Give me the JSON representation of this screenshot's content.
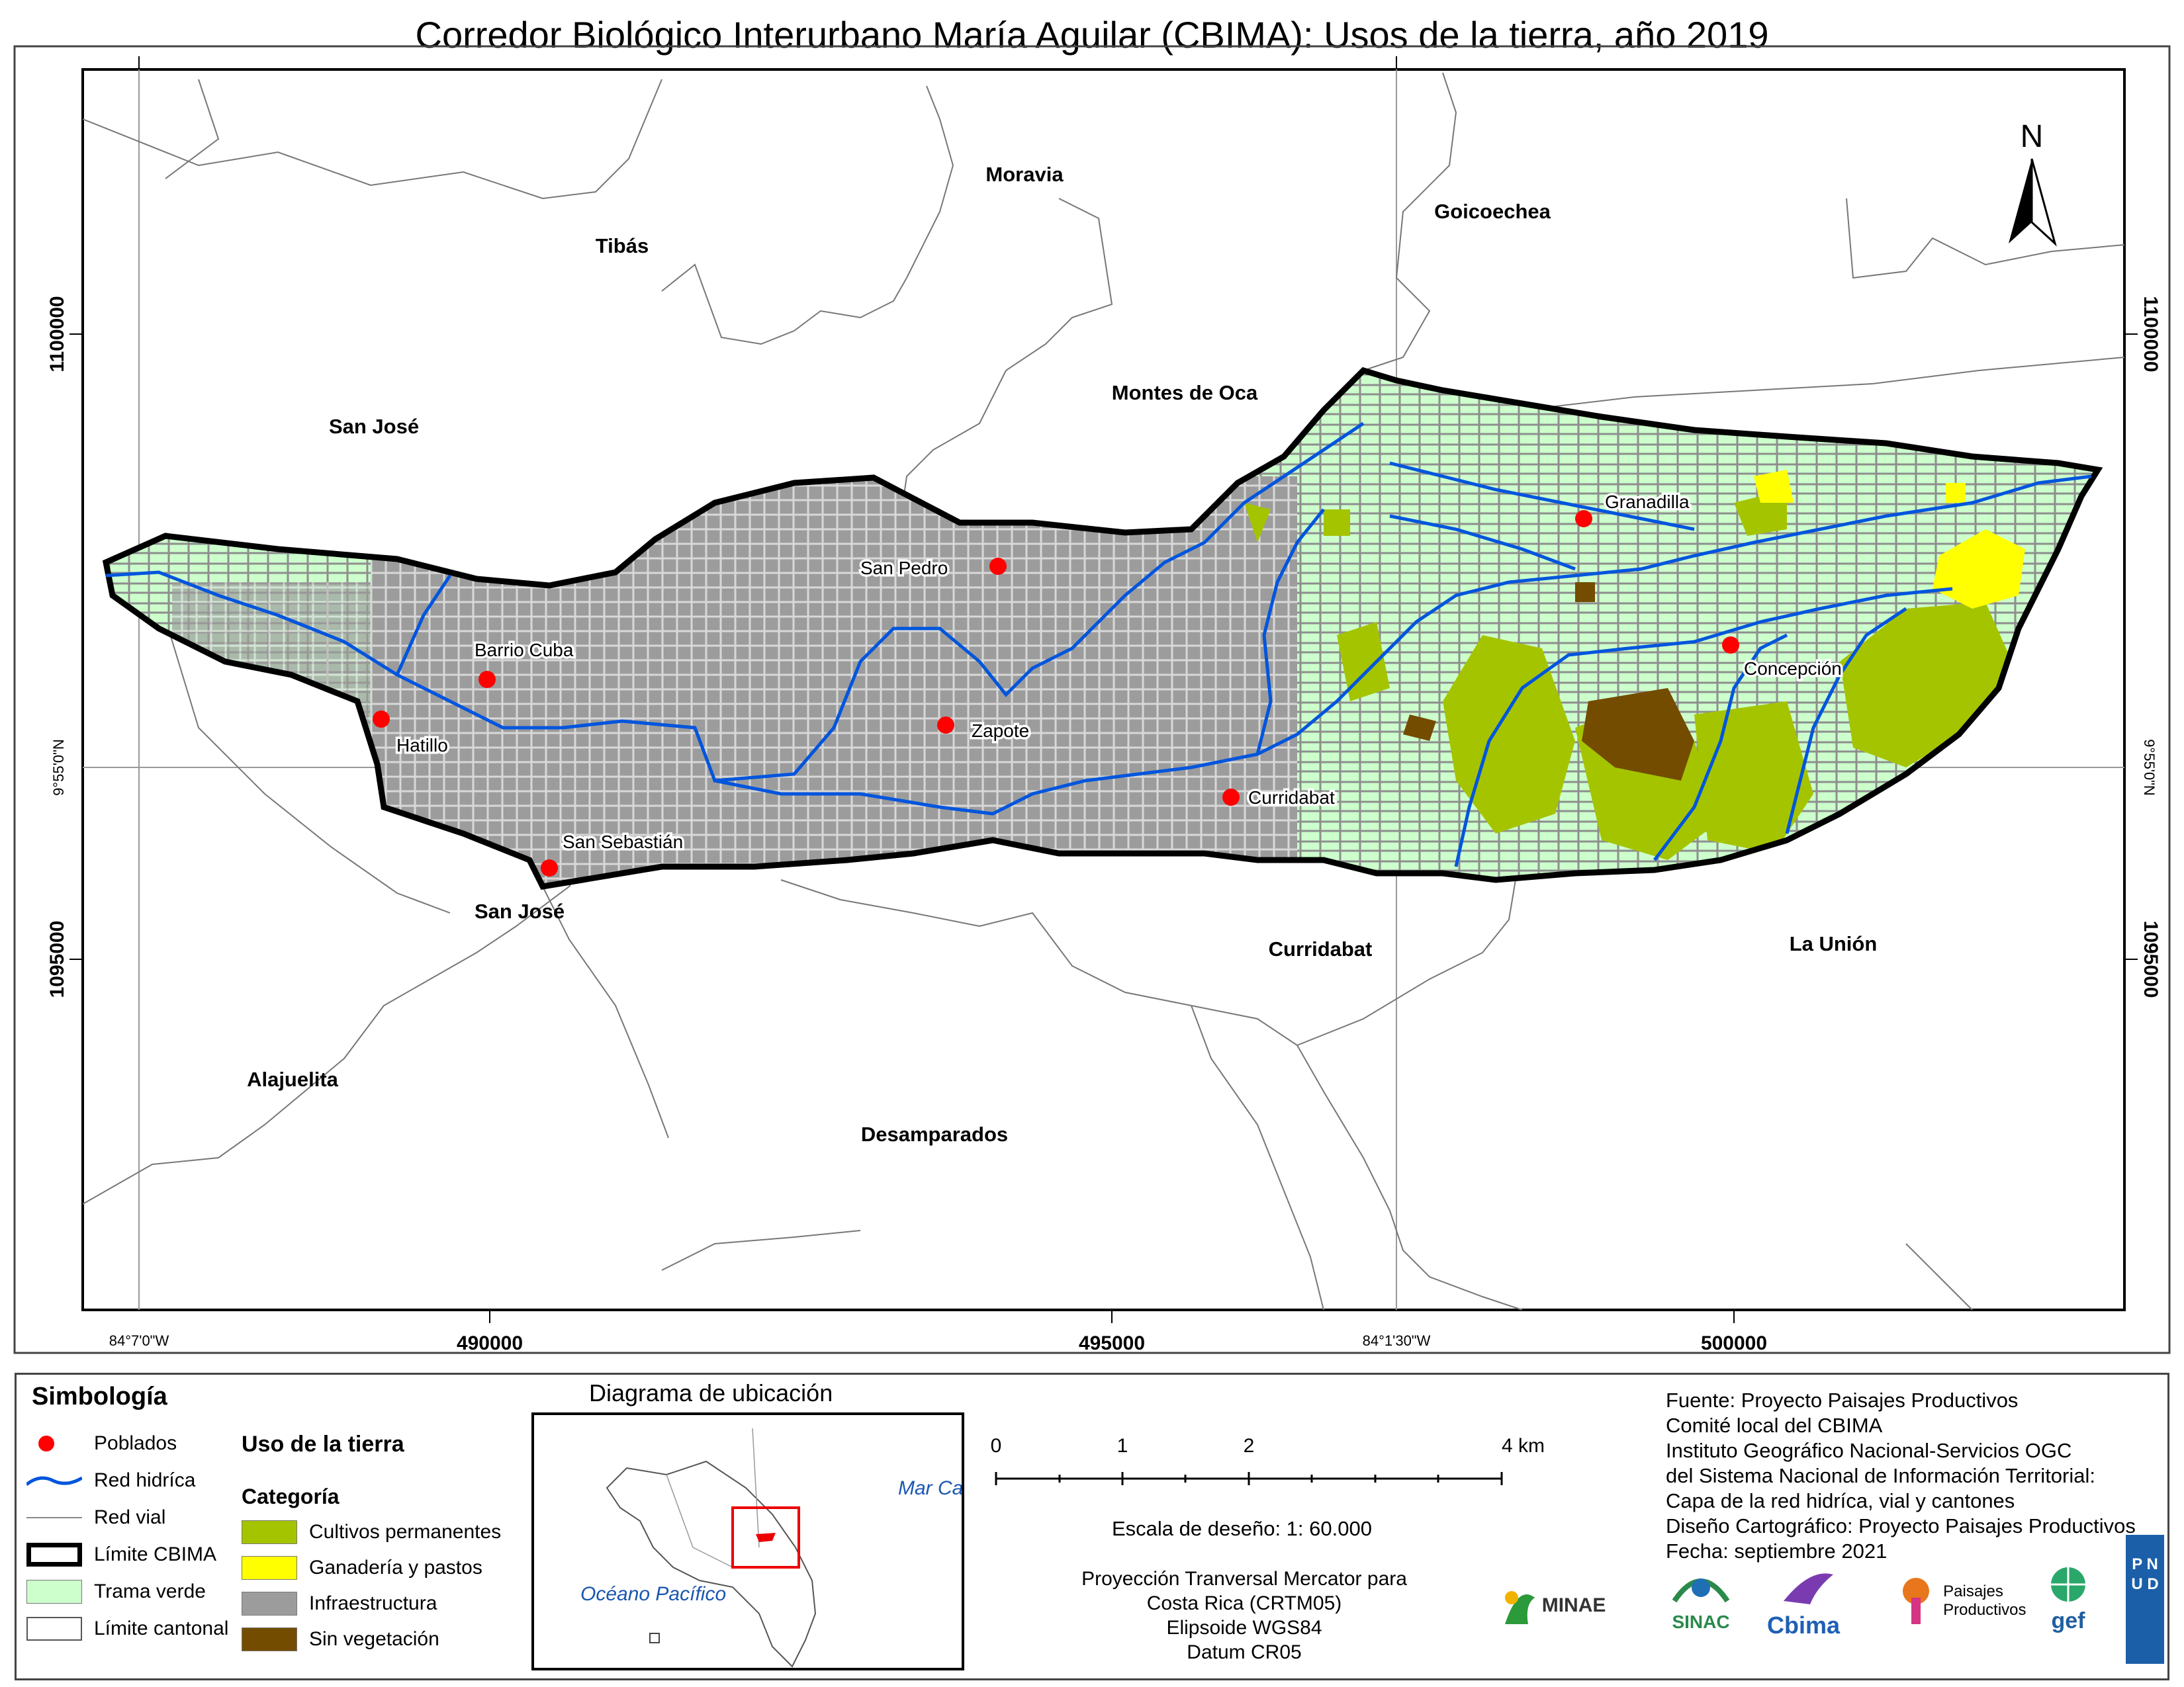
{
  "title": "Corredor Biológico Interurbano María Aguilar (CBIMA): Usos de la tierra, año 2019",
  "grid": {
    "northing_labels": [
      "1100000",
      "1095000"
    ],
    "easting_labels": [
      "490000",
      "495000",
      "500000"
    ],
    "lat_label": "9°55'0\"N",
    "lon_labels": [
      "84°7'0\"W",
      "84°1'30\"W"
    ]
  },
  "north_arrow": "N",
  "cantons": [
    "Tibás",
    "Moravia",
    "Goicoechea",
    "Montes de Oca",
    "San José",
    "San José",
    "Curridabat",
    "La Unión",
    "Alajuelita",
    "Desamparados"
  ],
  "towns": [
    "San Pedro",
    "Granadilla",
    "Barrio Cuba",
    "Hatillo",
    "Zapote",
    "Concepción",
    "Curridabat",
    "San Sebastián"
  ],
  "legend": {
    "heading": "Simbología",
    "items": [
      {
        "label": "Poblados",
        "icon": "red-dot"
      },
      {
        "label": "Red hidríca",
        "icon": "blue-line"
      },
      {
        "label": "Red vial",
        "icon": "gray-line"
      },
      {
        "label": "Límite CBIMA",
        "icon": "thick-black-box"
      },
      {
        "label": "Trama verde",
        "color": "#ccffcc"
      },
      {
        "label": "Límite cantonal",
        "icon": "thin-box"
      }
    ],
    "landuse_heading": "Uso de la tierra",
    "category_heading": "Categoría",
    "categories": [
      {
        "label": "Cultivos permanentes",
        "color": "#a5c400"
      },
      {
        "label": "Ganadería y pastos",
        "color": "#ffff00"
      },
      {
        "label": "Infraestructura",
        "color": "#9c9c9c"
      },
      {
        "label": "Sin vegetación",
        "color": "#734c00"
      }
    ]
  },
  "location_diagram": {
    "title": "Diagrama de ubicación",
    "sea_north": "Mar Caribe",
    "sea_south": "Océano Pacífico"
  },
  "scale": {
    "ticks": [
      "0",
      "1",
      "2",
      "4 km"
    ],
    "scale_text": "Escala de deseño: 1: 60.000",
    "projection": [
      "Proyección Tranversal Mercator para",
      "Costa Rica (CRTM05)",
      "Elipsoide WGS84",
      "Datum CR05"
    ]
  },
  "sources": [
    "Fuente: Proyecto Paisajes Productivos",
    "Comité local del CBIMA",
    "Instituto Geográfico Nacional-Servicios OGC",
    "del Sistema Nacional de Información Territorial:",
    "Capa de la red hidríca, vial y cantones",
    "Diseño Cartográfico: Proyecto Paisajes Productivos",
    "Fecha: septiembre 2021"
  ],
  "logos": [
    "MINAE",
    "SINAC",
    "Cbima",
    "Paisajes Productivos",
    "gef",
    "P N U D"
  ],
  "colors": {
    "infra": "#9c9c9c",
    "green": "#ccffcc",
    "crop": "#a5c400",
    "pasture": "#ffff00",
    "bare": "#734c00",
    "river": "#0055dd",
    "town": "#ff0000"
  }
}
